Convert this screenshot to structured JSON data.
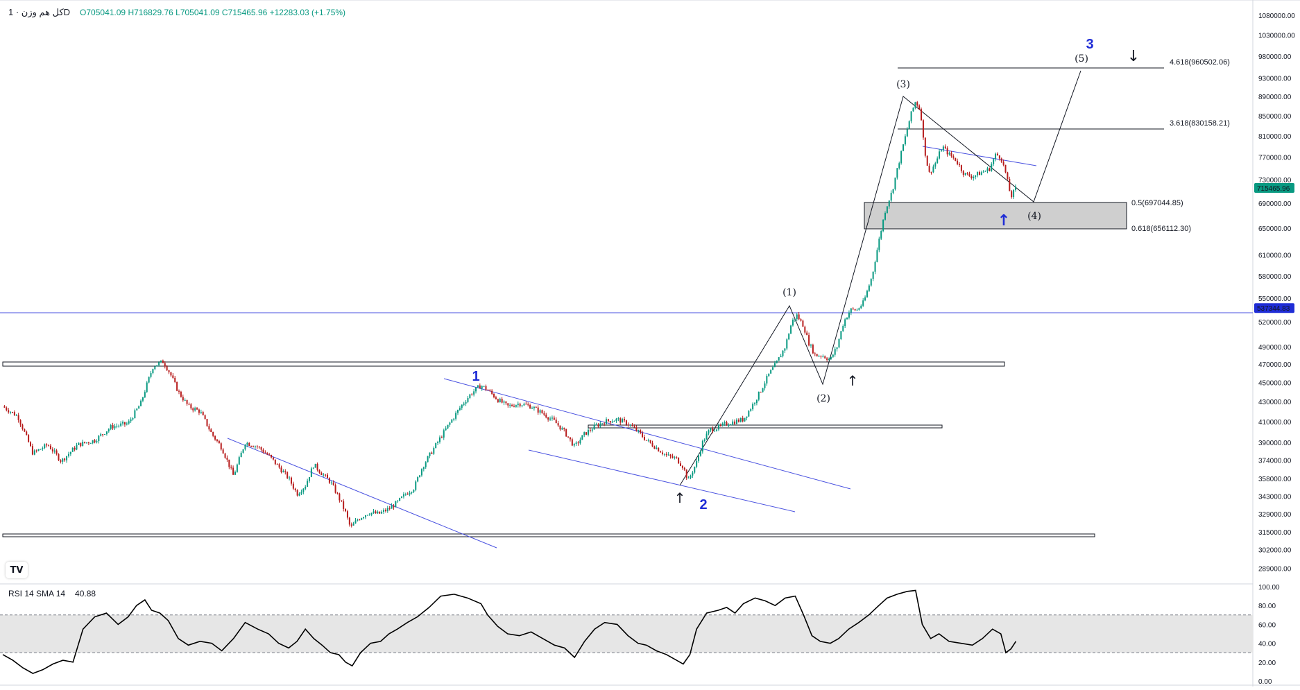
{
  "header": {
    "symbol": "كل هم وزن · 1D",
    "ohlc": "O705041.09 H716829.76 L705041.09 C715465.96 +12283.03 (+1.75%)"
  },
  "price_axis": {
    "ticks": [
      "1080000.00",
      "1030000.00",
      "980000.00",
      "930000.00",
      "890000.00",
      "850000.00",
      "810000.00",
      "770000.00",
      "730000.00",
      "690000.00",
      "650000.00",
      "610000.00",
      "580000.00",
      "550000.00",
      "520000.00",
      "490000.00",
      "470000.00",
      "450000.00",
      "430000.00",
      "410000.00",
      "390000.00",
      "374000.00",
      "358000.00",
      "343000.00",
      "329000.00",
      "315000.00",
      "302000.00",
      "289000.00"
    ],
    "current_price_label": "715465.96",
    "hline_label": "537344.83"
  },
  "rsi": {
    "label": "RSI 14 SMA 14",
    "value": "40.88",
    "ticks": [
      "100.00",
      "80.00",
      "60.00",
      "40.00",
      "20.00",
      "0.00"
    ]
  },
  "annotations": {
    "wave_1": "(1)",
    "wave_2": "(2)",
    "wave_3": "(3)",
    "wave_4": "(4)",
    "wave_5": "(5)",
    "big_1": "1",
    "big_2": "2",
    "big_3": "3",
    "fib_4618": "4.618(960502.06)",
    "fib_3618": "3.618(830158.21)",
    "fib_05": "0.5(697044.85)",
    "fib_0618": "0.618(656112.30)"
  },
  "chart_data": {
    "type": "candlestick",
    "timeframe": "1D",
    "price_range": [
      283000,
      1080000
    ],
    "log_scale": true,
    "hline": 537344.83,
    "close_path": [
      [
        0,
        425000
      ],
      [
        18,
        415000
      ],
      [
        36,
        380000
      ],
      [
        54,
        388000
      ],
      [
        70,
        373000
      ],
      [
        90,
        388000
      ],
      [
        110,
        392000
      ],
      [
        130,
        405000
      ],
      [
        150,
        408000
      ],
      [
        165,
        428000
      ],
      [
        180,
        468000
      ],
      [
        192,
        473000
      ],
      [
        200,
        460000
      ],
      [
        210,
        440000
      ],
      [
        222,
        425000
      ],
      [
        236,
        420000
      ],
      [
        250,
        398000
      ],
      [
        262,
        385000
      ],
      [
        276,
        360000
      ],
      [
        290,
        390000
      ],
      [
        305,
        386000
      ],
      [
        318,
        378000
      ],
      [
        330,
        368000
      ],
      [
        342,
        358000
      ],
      [
        352,
        345000
      ],
      [
        362,
        352000
      ],
      [
        372,
        370000
      ],
      [
        382,
        362000
      ],
      [
        392,
        355000
      ],
      [
        402,
        342000
      ],
      [
        410,
        330000
      ],
      [
        416,
        318000
      ],
      [
        425,
        325000
      ],
      [
        438,
        330000
      ],
      [
        450,
        329000
      ],
      [
        462,
        333000
      ],
      [
        472,
        338000
      ],
      [
        482,
        345000
      ],
      [
        492,
        350000
      ],
      [
        502,
        368000
      ],
      [
        512,
        380000
      ],
      [
        524,
        395000
      ],
      [
        536,
        410000
      ],
      [
        548,
        425000
      ],
      [
        560,
        438000
      ],
      [
        572,
        447000
      ],
      [
        580,
        442000
      ],
      [
        592,
        432000
      ],
      [
        604,
        425000
      ],
      [
        618,
        428000
      ],
      [
        632,
        425000
      ],
      [
        646,
        418000
      ],
      [
        660,
        410000
      ],
      [
        672,
        400000
      ],
      [
        684,
        386000
      ],
      [
        696,
        398000
      ],
      [
        708,
        405000
      ],
      [
        720,
        410000
      ],
      [
        735,
        412000
      ],
      [
        748,
        408000
      ],
      [
        760,
        400000
      ],
      [
        770,
        392000
      ],
      [
        782,
        385000
      ],
      [
        794,
        378000
      ],
      [
        806,
        375000
      ],
      [
        814,
        368000
      ],
      [
        820,
        356000
      ],
      [
        830,
        372000
      ],
      [
        838,
        392000
      ],
      [
        846,
        402000
      ],
      [
        856,
        404000
      ],
      [
        866,
        408000
      ],
      [
        876,
        410000
      ],
      [
        886,
        412000
      ],
      [
        896,
        425000
      ],
      [
        906,
        440000
      ],
      [
        916,
        458000
      ],
      [
        926,
        472000
      ],
      [
        936,
        490000
      ],
      [
        944,
        520000
      ],
      [
        950,
        528000
      ],
      [
        958,
        515000
      ],
      [
        964,
        495000
      ],
      [
        972,
        480000
      ],
      [
        980,
        480000
      ],
      [
        990,
        475000
      ],
      [
        998,
        490000
      ],
      [
        1006,
        520000
      ],
      [
        1014,
        535000
      ],
      [
        1022,
        535000
      ],
      [
        1030,
        545000
      ],
      [
        1040,
        580000
      ],
      [
        1048,
        630000
      ],
      [
        1056,
        680000
      ],
      [
        1064,
        710000
      ],
      [
        1072,
        760000
      ],
      [
        1080,
        810000
      ],
      [
        1086,
        850000
      ],
      [
        1092,
        880000
      ],
      [
        1098,
        860000
      ],
      [
        1102,
        790000
      ],
      [
        1108,
        740000
      ],
      [
        1116,
        760000
      ],
      [
        1124,
        790000
      ],
      [
        1132,
        775000
      ],
      [
        1140,
        765000
      ],
      [
        1150,
        740000
      ],
      [
        1160,
        735000
      ],
      [
        1170,
        742000
      ],
      [
        1180,
        748000
      ],
      [
        1188,
        775000
      ],
      [
        1194,
        770000
      ],
      [
        1200,
        740000
      ],
      [
        1206,
        700000
      ],
      [
        1212,
        715465.96
      ]
    ],
    "rsi14_path": [
      [
        0,
        28
      ],
      [
        12,
        22
      ],
      [
        24,
        14
      ],
      [
        36,
        8
      ],
      [
        48,
        12
      ],
      [
        60,
        18
      ],
      [
        72,
        22
      ],
      [
        84,
        20
      ],
      [
        96,
        55
      ],
      [
        110,
        68
      ],
      [
        124,
        72
      ],
      [
        138,
        60
      ],
      [
        150,
        68
      ],
      [
        160,
        80
      ],
      [
        170,
        86
      ],
      [
        178,
        75
      ],
      [
        188,
        72
      ],
      [
        198,
        64
      ],
      [
        210,
        45
      ],
      [
        222,
        38
      ],
      [
        236,
        42
      ],
      [
        250,
        40
      ],
      [
        262,
        32
      ],
      [
        276,
        45
      ],
      [
        290,
        62
      ],
      [
        305,
        55
      ],
      [
        318,
        50
      ],
      [
        330,
        40
      ],
      [
        342,
        35
      ],
      [
        352,
        42
      ],
      [
        362,
        55
      ],
      [
        372,
        45
      ],
      [
        382,
        38
      ],
      [
        392,
        30
      ],
      [
        402,
        28
      ],
      [
        410,
        20
      ],
      [
        418,
        16
      ],
      [
        428,
        30
      ],
      [
        440,
        40
      ],
      [
        452,
        42
      ],
      [
        462,
        50
      ],
      [
        472,
        55
      ],
      [
        484,
        62
      ],
      [
        496,
        68
      ],
      [
        510,
        78
      ],
      [
        524,
        90
      ],
      [
        540,
        92
      ],
      [
        556,
        88
      ],
      [
        572,
        82
      ],
      [
        580,
        70
      ],
      [
        592,
        58
      ],
      [
        604,
        50
      ],
      [
        618,
        48
      ],
      [
        632,
        52
      ],
      [
        646,
        45
      ],
      [
        660,
        38
      ],
      [
        672,
        35
      ],
      [
        684,
        25
      ],
      [
        696,
        42
      ],
      [
        708,
        55
      ],
      [
        720,
        62
      ],
      [
        735,
        60
      ],
      [
        748,
        48
      ],
      [
        760,
        40
      ],
      [
        770,
        38
      ],
      [
        782,
        32
      ],
      [
        794,
        28
      ],
      [
        806,
        22
      ],
      [
        814,
        18
      ],
      [
        822,
        28
      ],
      [
        830,
        55
      ],
      [
        842,
        72
      ],
      [
        856,
        75
      ],
      [
        866,
        78
      ],
      [
        876,
        72
      ],
      [
        886,
        82
      ],
      [
        900,
        88
      ],
      [
        912,
        85
      ],
      [
        924,
        80
      ],
      [
        936,
        88
      ],
      [
        948,
        90
      ],
      [
        958,
        70
      ],
      [
        968,
        48
      ],
      [
        978,
        42
      ],
      [
        990,
        40
      ],
      [
        1000,
        45
      ],
      [
        1012,
        55
      ],
      [
        1024,
        62
      ],
      [
        1036,
        70
      ],
      [
        1048,
        80
      ],
      [
        1058,
        88
      ],
      [
        1070,
        92
      ],
      [
        1082,
        95
      ],
      [
        1092,
        96
      ],
      [
        1100,
        60
      ],
      [
        1110,
        45
      ],
      [
        1120,
        50
      ],
      [
        1132,
        42
      ],
      [
        1146,
        40
      ],
      [
        1160,
        38
      ],
      [
        1172,
        45
      ],
      [
        1184,
        55
      ],
      [
        1194,
        50
      ],
      [
        1200,
        30
      ],
      [
        1206,
        34
      ],
      [
        1212,
        42
      ]
    ],
    "rsi_last": 40.88,
    "rsi_band": [
      30,
      70
    ]
  },
  "colors": {
    "up": "#089981",
    "down": "#b71c1c",
    "blue": "#1f2dd6",
    "channel": "#4a52e0",
    "line": "#131722"
  }
}
